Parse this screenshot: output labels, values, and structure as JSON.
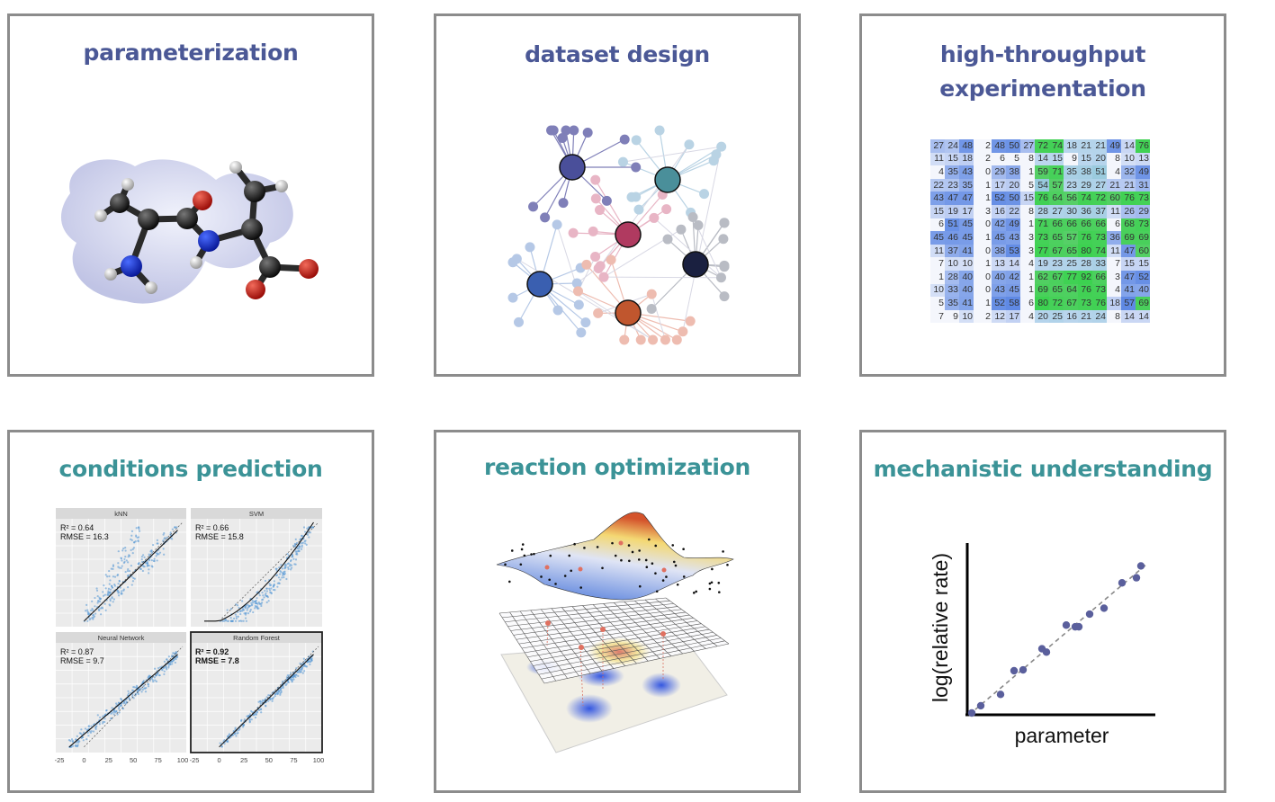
{
  "panels": {
    "parameterization": {
      "title": "parameterization"
    },
    "dataset_design": {
      "title": "dataset design"
    },
    "hte": {
      "title_line1": "high-throughput",
      "title_line2": "experimentation"
    },
    "conditions": {
      "title": "conditions prediction"
    },
    "optimization": {
      "title": "reaction optimization"
    },
    "mechanistic": {
      "title": "mechanistic understanding"
    }
  },
  "colors": {
    "title_top": "#4b5896",
    "title_bottom": "#3b9397",
    "border": "#8c8c8c"
  },
  "heatmap": {
    "rows": [
      [
        27,
        24,
        48,
        2,
        48,
        50,
        27,
        72,
        74,
        18,
        21,
        21,
        49,
        14,
        76
      ],
      [
        11,
        15,
        18,
        2,
        6,
        5,
        8,
        14,
        15,
        9,
        15,
        20,
        8,
        10,
        13
      ],
      [
        4,
        35,
        43,
        0,
        29,
        38,
        1,
        59,
        71,
        35,
        38,
        51,
        4,
        32,
        49
      ],
      [
        22,
        23,
        35,
        1,
        17,
        20,
        5,
        54,
        57,
        23,
        29,
        27,
        21,
        21,
        31
      ],
      [
        43,
        47,
        47,
        1,
        52,
        50,
        15,
        76,
        64,
        56,
        74,
        72,
        60,
        76,
        73
      ],
      [
        15,
        19,
        17,
        3,
        16,
        22,
        8,
        28,
        27,
        30,
        36,
        37,
        11,
        26,
        29
      ],
      [
        6,
        51,
        45,
        0,
        42,
        49,
        1,
        71,
        66,
        66,
        66,
        66,
        6,
        68,
        73
      ],
      [
        45,
        46,
        45,
        1,
        45,
        43,
        3,
        73,
        65,
        57,
        76,
        73,
        36,
        69,
        69
      ],
      [
        11,
        37,
        41,
        0,
        38,
        53,
        3,
        77,
        67,
        65,
        80,
        74,
        11,
        47,
        60
      ],
      [
        7,
        10,
        10,
        1,
        13,
        14,
        4,
        19,
        23,
        25,
        28,
        33,
        7,
        15,
        15
      ],
      [
        1,
        28,
        40,
        0,
        40,
        42,
        1,
        62,
        67,
        77,
        92,
        66,
        3,
        47,
        52
      ],
      [
        10,
        33,
        40,
        0,
        43,
        45,
        1,
        69,
        65,
        64,
        76,
        73,
        4,
        41,
        40
      ],
      [
        5,
        35,
        41,
        1,
        52,
        58,
        6,
        80,
        72,
        67,
        73,
        76,
        18,
        57,
        69
      ],
      [
        7,
        9,
        10,
        2,
        12,
        17,
        4,
        20,
        25,
        16,
        21,
        24,
        8,
        14,
        14
      ]
    ]
  },
  "chart_data": [
    {
      "type": "scatter",
      "title": "conditions prediction",
      "x_ticks": [
        "-25",
        "0",
        "25",
        "50",
        "75",
        "100"
      ],
      "xlim": [
        -25,
        100
      ],
      "facets": [
        {
          "name": "kNN",
          "r2": "R² = 0.64",
          "rmse": "RMSE = 16.3",
          "fit": "linear",
          "highlight": false
        },
        {
          "name": "SVM",
          "r2": "R² = 0.66",
          "rmse": "RMSE = 15.8",
          "fit": "convex",
          "highlight": false
        },
        {
          "name": "Neural Network",
          "r2": "R² = 0.87",
          "rmse": "RMSE = 9.7",
          "fit": "linear",
          "highlight": false
        },
        {
          "name": "Random Forest",
          "r2": "R² = 0.92",
          "rmse": "RMSE = 7.8",
          "fit": "linear",
          "highlight": true
        }
      ]
    },
    {
      "type": "scatter",
      "title": "mechanistic understanding",
      "xlabel": "parameter",
      "ylabel": "log(relative rate)",
      "xlim": [
        0,
        10
      ],
      "ylim": [
        0,
        10
      ],
      "x": [
        0.25,
        0.75,
        1.85,
        2.6,
        3.1,
        4.15,
        4.4,
        5.5,
        6.0,
        6.2,
        6.8,
        7.6,
        8.6,
        9.4,
        9.65
      ],
      "y": [
        0.0,
        0.43,
        1.1,
        2.5,
        2.55,
        3.8,
        3.6,
        5.2,
        5.1,
        5.1,
        5.85,
        6.2,
        7.7,
        8.0,
        8.7
      ],
      "trendline": "dashed linear"
    }
  ]
}
